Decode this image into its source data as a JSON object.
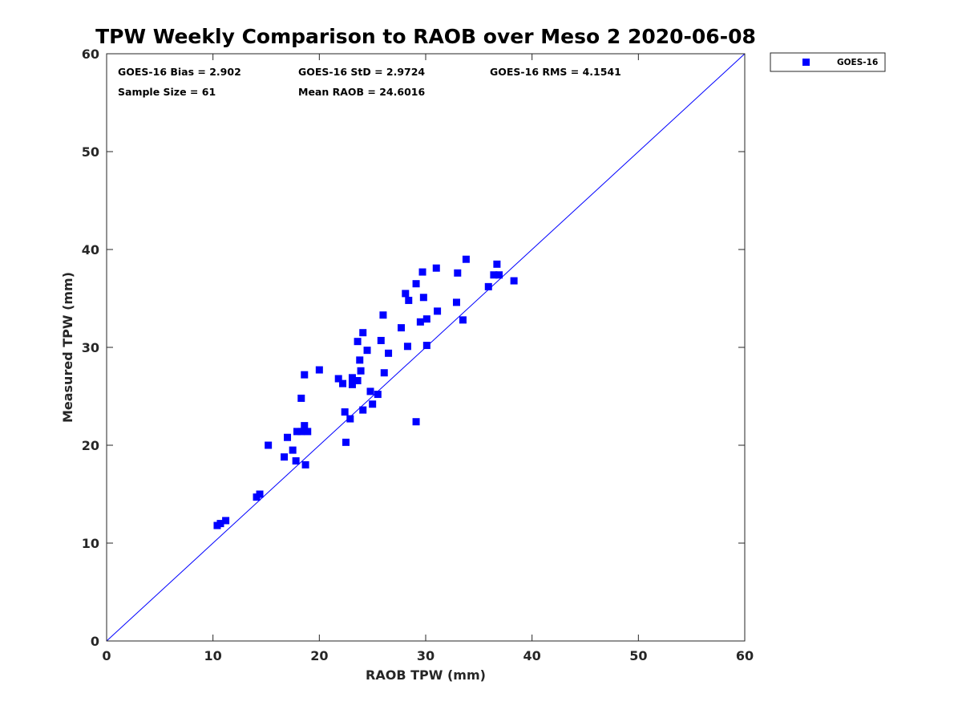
{
  "chart_data": {
    "type": "scatter",
    "title": "TPW Weekly Comparison to RAOB over Meso 2 2020-06-08",
    "xlabel": "RAOB TPW (mm)",
    "ylabel": "Measured TPW (mm)",
    "xlim": [
      0,
      60
    ],
    "ylim": [
      0,
      60
    ],
    "xticks": [
      0,
      10,
      20,
      30,
      40,
      50,
      60
    ],
    "yticks": [
      0,
      10,
      20,
      30,
      40,
      50,
      60
    ],
    "xtick_labels": [
      "0",
      "10",
      "20",
      "30",
      "40",
      "50",
      "60"
    ],
    "ytick_labels": [
      "0",
      "10",
      "20",
      "30",
      "40",
      "50",
      "60"
    ],
    "grid": false,
    "legend_position": "outside-top-right",
    "reference_line": {
      "name": "one-to-one",
      "from": [
        0,
        0
      ],
      "to": [
        60,
        60
      ],
      "color": "#0000ff"
    },
    "stats": {
      "bias": "GOES-16 Bias = 2.902",
      "std": "GOES-16 StD = 2.9724",
      "rms": "GOES-16 RMS = 4.1541",
      "sample_size": "Sample Size = 61",
      "mean_raob": "Mean RAOB = 24.6016"
    },
    "series": [
      {
        "name": "GOES-16",
        "color": "#0000ff",
        "marker": "square",
        "points": [
          [
            10.4,
            11.8
          ],
          [
            10.7,
            12.0
          ],
          [
            11.2,
            12.3
          ],
          [
            14.1,
            14.7
          ],
          [
            14.4,
            15.0
          ],
          [
            15.2,
            20.0
          ],
          [
            16.7,
            18.8
          ],
          [
            17.0,
            20.8
          ],
          [
            17.5,
            19.5
          ],
          [
            17.8,
            18.4
          ],
          [
            17.9,
            21.4
          ],
          [
            18.3,
            21.4
          ],
          [
            18.3,
            24.8
          ],
          [
            18.6,
            27.2
          ],
          [
            18.6,
            22.0
          ],
          [
            18.7,
            18.0
          ],
          [
            18.9,
            21.4
          ],
          [
            20.0,
            27.7
          ],
          [
            21.8,
            26.8
          ],
          [
            22.2,
            26.3
          ],
          [
            22.4,
            23.4
          ],
          [
            22.5,
            20.3
          ],
          [
            22.9,
            22.7
          ],
          [
            23.1,
            26.2
          ],
          [
            23.1,
            26.9
          ],
          [
            23.6,
            30.6
          ],
          [
            23.6,
            26.6
          ],
          [
            23.8,
            28.7
          ],
          [
            23.9,
            27.6
          ],
          [
            24.1,
            31.5
          ],
          [
            24.1,
            23.6
          ],
          [
            24.5,
            29.7
          ],
          [
            24.8,
            25.5
          ],
          [
            25.0,
            24.2
          ],
          [
            25.5,
            25.2
          ],
          [
            25.8,
            30.7
          ],
          [
            26.0,
            33.3
          ],
          [
            26.1,
            27.4
          ],
          [
            26.5,
            29.4
          ],
          [
            27.7,
            32.0
          ],
          [
            28.1,
            35.5
          ],
          [
            28.3,
            30.1
          ],
          [
            28.4,
            34.8
          ],
          [
            29.1,
            36.5
          ],
          [
            29.1,
            22.4
          ],
          [
            29.5,
            32.6
          ],
          [
            29.7,
            37.7
          ],
          [
            29.8,
            35.1
          ],
          [
            30.1,
            32.9
          ],
          [
            30.1,
            30.2
          ],
          [
            31.0,
            38.1
          ],
          [
            31.1,
            33.7
          ],
          [
            32.9,
            34.6
          ],
          [
            33.0,
            37.6
          ],
          [
            33.5,
            32.8
          ],
          [
            33.8,
            39.0
          ],
          [
            35.9,
            36.2
          ],
          [
            36.4,
            37.4
          ],
          [
            36.7,
            38.5
          ],
          [
            36.9,
            37.4
          ],
          [
            38.3,
            36.8
          ]
        ]
      }
    ]
  }
}
